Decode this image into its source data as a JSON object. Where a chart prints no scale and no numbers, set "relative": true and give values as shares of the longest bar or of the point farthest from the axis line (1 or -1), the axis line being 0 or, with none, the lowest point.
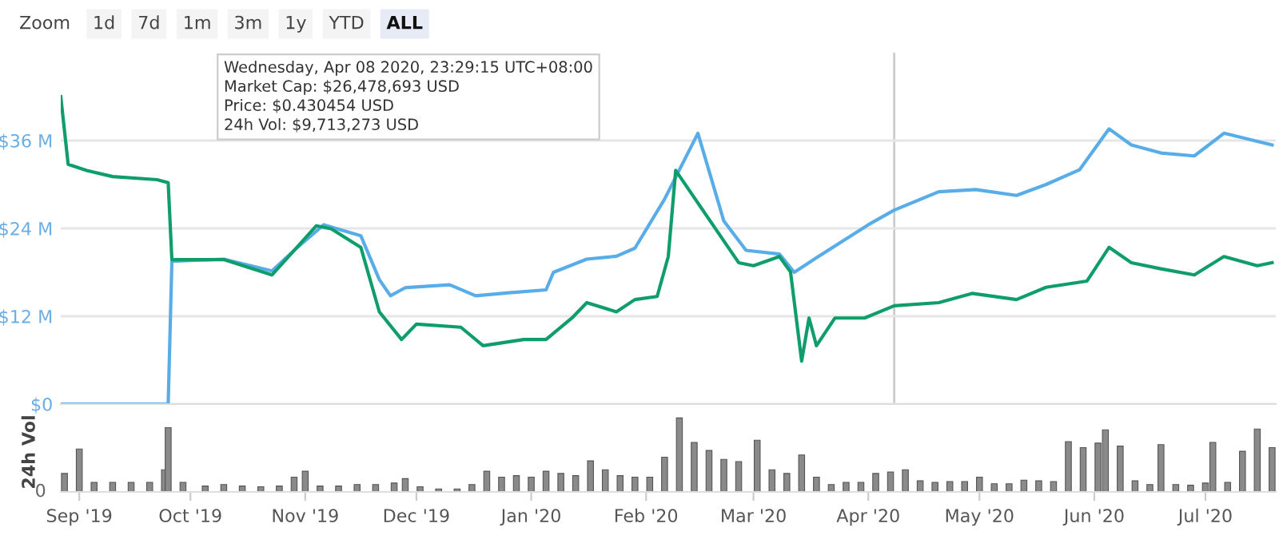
{
  "chart_data": [
    {
      "type": "line",
      "annotations": [
        "Zoom",
        "1d",
        "7d",
        "1m",
        "3m",
        "1y",
        "YTD",
        "ALL",
        "Wednesday, Apr 08 2020, 23:29:15 UTC+08:00",
        "Market Cap: $26,478,693 USD",
        "Price: $0.430454 USD",
        "24h Vol: $9,713,273 USD"
      ],
      "xlim": [
        "2019-08-27",
        "2020-07-20"
      ],
      "ylim": [
        0,
        48
      ],
      "yticks": [
        {
          "value": 0,
          "label": "$0"
        },
        {
          "value": 12,
          "label": "$12 M"
        },
        {
          "value": 24,
          "label": "$24 M"
        },
        {
          "value": 36,
          "label": "$36 M"
        }
      ],
      "tick_labels": "y",
      "grid": "y",
      "ref_lines": [
        {
          "axis": "x",
          "value": "2020-04-08",
          "color": "#cccccc"
        }
      ],
      "series": [
        {
          "color": "#58ade8",
          "x": [
            "2019-08-27",
            "2019-09-25",
            "2019-09-26",
            "2019-10-10",
            "2019-10-23",
            "2019-10-29",
            "2019-11-06",
            "2019-11-16",
            "2019-11-21",
            "2019-11-24",
            "2019-11-28",
            "2019-12-10",
            "2019-12-17",
            "2019-12-26",
            "2020-01-05",
            "2020-01-07",
            "2020-01-16",
            "2020-01-24",
            "2020-01-29",
            "2020-02-06",
            "2020-02-15",
            "2020-02-22",
            "2020-02-28",
            "2020-03-08",
            "2020-03-12",
            "2020-03-18",
            "2020-04-01",
            "2020-04-08",
            "2020-04-20",
            "2020-04-30",
            "2020-05-11",
            "2020-05-19",
            "2020-05-28",
            "2020-06-05",
            "2020-06-11",
            "2020-06-19",
            "2020-06-28",
            "2020-07-06",
            "2020-07-15",
            "2020-07-19"
          ],
          "values": [
            0,
            0,
            19.5,
            19.8,
            18.2,
            21.0,
            24.5,
            23.0,
            17.0,
            14.8,
            15.9,
            16.3,
            14.8,
            15.2,
            15.6,
            18.0,
            19.8,
            20.2,
            21.3,
            28.0,
            37.0,
            25.0,
            21.0,
            20.5,
            18.0,
            20.0,
            24.5,
            26.5,
            29.0,
            29.3,
            28.5,
            30.0,
            32.0,
            37.6,
            35.4,
            34.3,
            33.9,
            37.0,
            35.9,
            35.4
          ]
        }
      ]
    },
    {
      "type": "bar",
      "relative": true,
      "ylabel": "24h Vol",
      "annotations": [
        "0"
      ],
      "xlim": [
        "2019-08-27",
        "2020-07-20"
      ],
      "xticks": [
        {
          "value": "2019-09-01",
          "label": "Sep '19"
        },
        {
          "value": "2019-10-01",
          "label": "Oct '19"
        },
        {
          "value": "2019-11-01",
          "label": "Nov '19"
        },
        {
          "value": "2019-12-01",
          "label": "Dec '19"
        },
        {
          "value": "2020-01-01",
          "label": "Jan '20"
        },
        {
          "value": "2020-02-01",
          "label": "Feb '20"
        },
        {
          "value": "2020-03-01",
          "label": "Mar '20"
        },
        {
          "value": "2020-04-01",
          "label": "Apr '20"
        },
        {
          "value": "2020-05-01",
          "label": "May '20"
        },
        {
          "value": "2020-06-01",
          "label": "Jun '20"
        },
        {
          "value": "2020-07-01",
          "label": "Jul '20"
        }
      ],
      "series": [
        {
          "color": "#8a8a8a",
          "x": [
            "2019-08-28",
            "2019-09-01",
            "2019-09-05",
            "2019-09-10",
            "2019-09-15",
            "2019-09-20",
            "2019-09-24",
            "2019-09-25",
            "2019-09-29",
            "2019-10-05",
            "2019-10-10",
            "2019-10-15",
            "2019-10-20",
            "2019-10-25",
            "2019-10-29",
            "2019-11-01",
            "2019-11-05",
            "2019-11-10",
            "2019-11-15",
            "2019-11-20",
            "2019-11-25",
            "2019-11-28",
            "2019-12-02",
            "2019-12-07",
            "2019-12-12",
            "2019-12-16",
            "2019-12-20",
            "2019-12-24",
            "2019-12-28",
            "2020-01-01",
            "2020-01-05",
            "2020-01-09",
            "2020-01-13",
            "2020-01-17",
            "2020-01-21",
            "2020-01-25",
            "2020-01-29",
            "2020-02-02",
            "2020-02-06",
            "2020-02-10",
            "2020-02-14",
            "2020-02-18",
            "2020-02-22",
            "2020-02-26",
            "2020-03-02",
            "2020-03-06",
            "2020-03-10",
            "2020-03-14",
            "2020-03-18",
            "2020-03-22",
            "2020-03-26",
            "2020-03-30",
            "2020-04-03",
            "2020-04-07",
            "2020-04-11",
            "2020-04-15",
            "2020-04-19",
            "2020-04-23",
            "2020-04-27",
            "2020-05-01",
            "2020-05-05",
            "2020-05-09",
            "2020-05-13",
            "2020-05-17",
            "2020-05-21",
            "2020-05-25",
            "2020-05-29",
            "2020-06-02",
            "2020-06-04",
            "2020-06-08",
            "2020-06-12",
            "2020-06-16",
            "2020-06-19",
            "2020-06-23",
            "2020-06-27",
            "2020-07-01",
            "2020-07-03",
            "2020-07-07",
            "2020-07-11",
            "2020-07-15",
            "2020-07-19"
          ],
          "values": [
            0.25,
            0.58,
            0.13,
            0.13,
            0.13,
            0.13,
            0.3,
            0.87,
            0.13,
            0.08,
            0.1,
            0.08,
            0.07,
            0.08,
            0.2,
            0.28,
            0.08,
            0.08,
            0.1,
            0.1,
            0.12,
            0.18,
            0.07,
            0.04,
            0.04,
            0.1,
            0.28,
            0.2,
            0.22,
            0.2,
            0.28,
            0.25,
            0.22,
            0.42,
            0.3,
            0.22,
            0.2,
            0.2,
            0.47,
            1.0,
            0.67,
            0.56,
            0.44,
            0.41,
            0.7,
            0.3,
            0.25,
            0.5,
            0.2,
            0.1,
            0.13,
            0.13,
            0.25,
            0.27,
            0.3,
            0.15,
            0.13,
            0.14,
            0.14,
            0.2,
            0.11,
            0.11,
            0.16,
            0.15,
            0.14,
            0.68,
            0.6,
            0.66,
            0.84,
            0.62,
            0.15,
            0.1,
            0.64,
            0.1,
            0.09,
            0.12,
            0.67,
            0.13,
            0.55,
            0.85,
            0.6
          ]
        }
      ]
    },
    {
      "type": "line",
      "relative": true,
      "xlim": [
        "2019-08-27",
        "2020-07-20"
      ],
      "series": [
        {
          "color": "#0e9d6b",
          "x": [
            "2019-08-27",
            "2019-08-29",
            "2019-09-03",
            "2019-09-10",
            "2019-09-22",
            "2019-09-25",
            "2019-09-26",
            "2019-10-10",
            "2019-10-23",
            "2019-10-29",
            "2019-11-04",
            "2019-11-08",
            "2019-11-16",
            "2019-11-21",
            "2019-11-27",
            "2019-12-01",
            "2019-12-13",
            "2019-12-19",
            "2019-12-30",
            "2020-01-05",
            "2020-01-12",
            "2020-01-16",
            "2020-01-24",
            "2020-01-29",
            "2020-02-04",
            "2020-02-07",
            "2020-02-09",
            "2020-02-26",
            "2020-03-01",
            "2020-03-08",
            "2020-03-11",
            "2020-03-14",
            "2020-03-16",
            "2020-03-18",
            "2020-03-23",
            "2020-03-31",
            "2020-04-08",
            "2020-04-20",
            "2020-04-29",
            "2020-05-11",
            "2020-05-19",
            "2020-05-30",
            "2020-06-05",
            "2020-06-11",
            "2020-06-19",
            "2020-06-28",
            "2020-07-06",
            "2020-07-15",
            "2020-07-19"
          ],
          "values": [
            1.0,
            0.78,
            0.76,
            0.74,
            0.73,
            0.72,
            0.47,
            0.47,
            0.42,
            0.5,
            0.58,
            0.57,
            0.51,
            0.3,
            0.21,
            0.26,
            0.25,
            0.19,
            0.21,
            0.21,
            0.28,
            0.33,
            0.3,
            0.34,
            0.35,
            0.48,
            0.76,
            0.46,
            0.45,
            0.48,
            0.43,
            0.14,
            0.28,
            0.19,
            0.28,
            0.28,
            0.32,
            0.33,
            0.36,
            0.34,
            0.38,
            0.4,
            0.51,
            0.46,
            0.44,
            0.42,
            0.48,
            0.45,
            0.46
          ]
        }
      ]
    }
  ]
}
